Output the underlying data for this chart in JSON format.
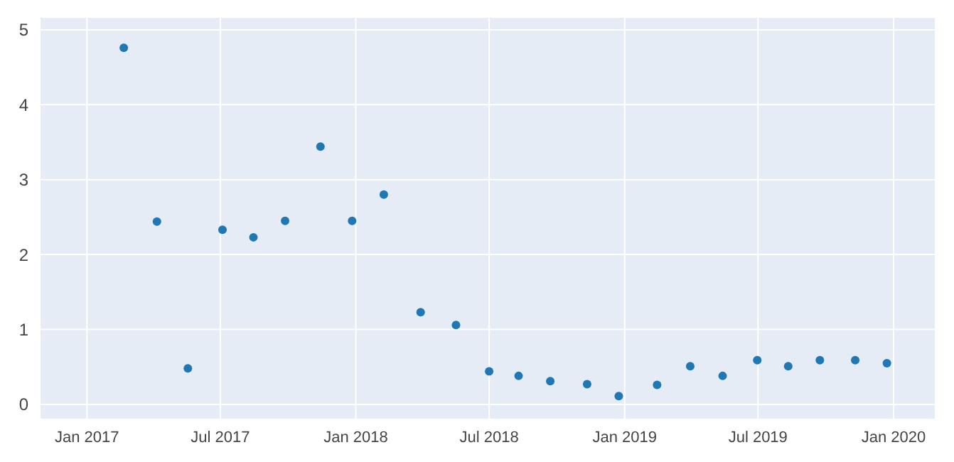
{
  "chart_data": {
    "type": "scatter",
    "marker": "circle",
    "grid": true,
    "x": [
      "2017-02-20",
      "2017-04-06",
      "2017-05-18",
      "2017-07-04",
      "2017-08-15",
      "2017-09-27",
      "2017-11-14",
      "2017-12-27",
      "2018-02-08",
      "2018-03-30",
      "2018-05-17",
      "2018-07-01",
      "2018-08-10",
      "2018-09-22",
      "2018-11-11",
      "2018-12-24",
      "2019-02-14",
      "2019-03-31",
      "2019-05-14",
      "2019-06-30",
      "2019-08-11",
      "2019-09-23",
      "2019-11-10",
      "2019-12-23"
    ],
    "series": [
      {
        "color": "#1f77b4",
        "values": [
          4.76,
          2.44,
          0.48,
          2.33,
          2.23,
          2.45,
          3.44,
          2.45,
          2.8,
          1.23,
          1.06,
          0.44,
          0.38,
          0.31,
          0.27,
          0.11,
          0.26,
          0.51,
          0.38,
          0.59,
          0.51,
          0.59,
          0.59,
          0.55
        ]
      }
    ],
    "xlim": [
      "2016-10-29",
      "2020-02-27"
    ],
    "xticks": [
      {
        "value": "2017-01-01",
        "label": "Jan 2017"
      },
      {
        "value": "2017-07-01",
        "label": "Jul 2017"
      },
      {
        "value": "2018-01-01",
        "label": "Jan 2018"
      },
      {
        "value": "2018-07-01",
        "label": "Jul 2018"
      },
      {
        "value": "2019-01-01",
        "label": "Jan 2019"
      },
      {
        "value": "2019-07-01",
        "label": "Jul 2019"
      },
      {
        "value": "2020-01-01",
        "label": "Jan 2020"
      }
    ],
    "ylim": [
      -0.2,
      5.17
    ],
    "yticks": [
      0,
      1,
      2,
      3,
      4,
      5
    ]
  }
}
